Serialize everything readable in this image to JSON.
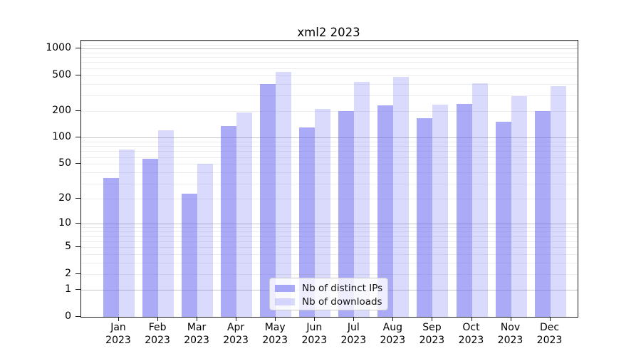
{
  "title": "xml2 2023",
  "chart_data": {
    "type": "bar",
    "title": "xml2 2023",
    "xlabel": "",
    "ylabel": "",
    "yscale": "log1p",
    "grid": "both",
    "legend_position": "lower-center",
    "categories": [
      "Jan",
      "Feb",
      "Mar",
      "Apr",
      "May",
      "Jun",
      "Jul",
      "Aug",
      "Sep",
      "Oct",
      "Nov",
      "Dec"
    ],
    "year_label": "2023",
    "yticks": [
      0,
      1,
      2,
      5,
      10,
      20,
      50,
      100,
      200,
      500,
      1000
    ],
    "ylim": [
      0,
      1240
    ],
    "series": [
      {
        "name": "Nb of distinct IPs",
        "fill": "rgba(85,85,240,0.5)",
        "values": [
          35,
          58,
          23,
          135,
          400,
          130,
          200,
          230,
          165,
          240,
          150,
          200
        ]
      },
      {
        "name": "Nb of downloads",
        "fill": "rgba(85,85,240,0.22)",
        "values": [
          73,
          120,
          50,
          190,
          550,
          210,
          420,
          480,
          235,
          410,
          290,
          380
        ]
      }
    ],
    "colors": {
      "grid_minor": "#ededed",
      "grid_major": "#c6c6c6",
      "spine": "#1a1a1a",
      "text": "#000000",
      "legend_border": "#cbcbcb",
      "legend_bg": "rgba(255,255,255,0.8)"
    }
  }
}
